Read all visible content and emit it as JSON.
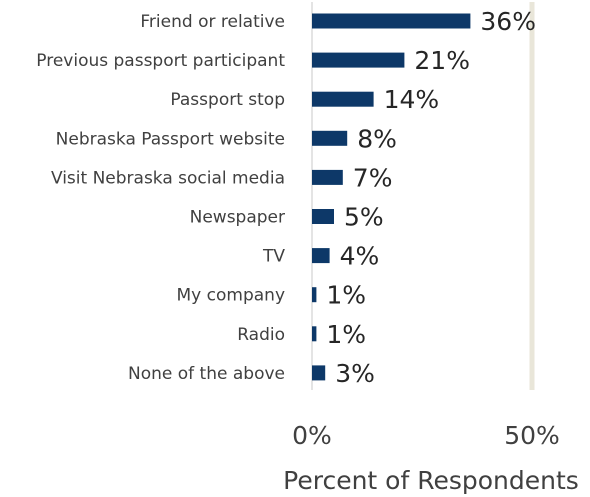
{
  "chart_data": {
    "type": "bar",
    "orientation": "horizontal",
    "categories": [
      "Friend or relative",
      "Previous passport participant",
      "Passport stop",
      "Nebraska Passport website",
      "Visit Nebraska social media",
      "Newspaper",
      "TV",
      "My company",
      "Radio",
      "None of the above"
    ],
    "values": [
      36,
      21,
      14,
      8,
      7,
      5,
      4,
      1,
      1,
      3
    ],
    "data_labels": [
      "36%",
      "21%",
      "14%",
      "8%",
      "7%",
      "5%",
      "4%",
      "1%",
      "1%",
      "3%"
    ],
    "xlim": [
      0,
      50
    ],
    "x_ticks": [
      0,
      50
    ],
    "x_tick_labels": [
      "0%",
      "50%"
    ],
    "xlabel": "Percent of Respondents",
    "ylabel": "",
    "title": "",
    "grid": "vertical gridline at 50%",
    "legend": "none",
    "colors": {
      "bar": "#0d3868",
      "gridline": "#e9e6d9",
      "axis": "#c8c8c8"
    }
  }
}
